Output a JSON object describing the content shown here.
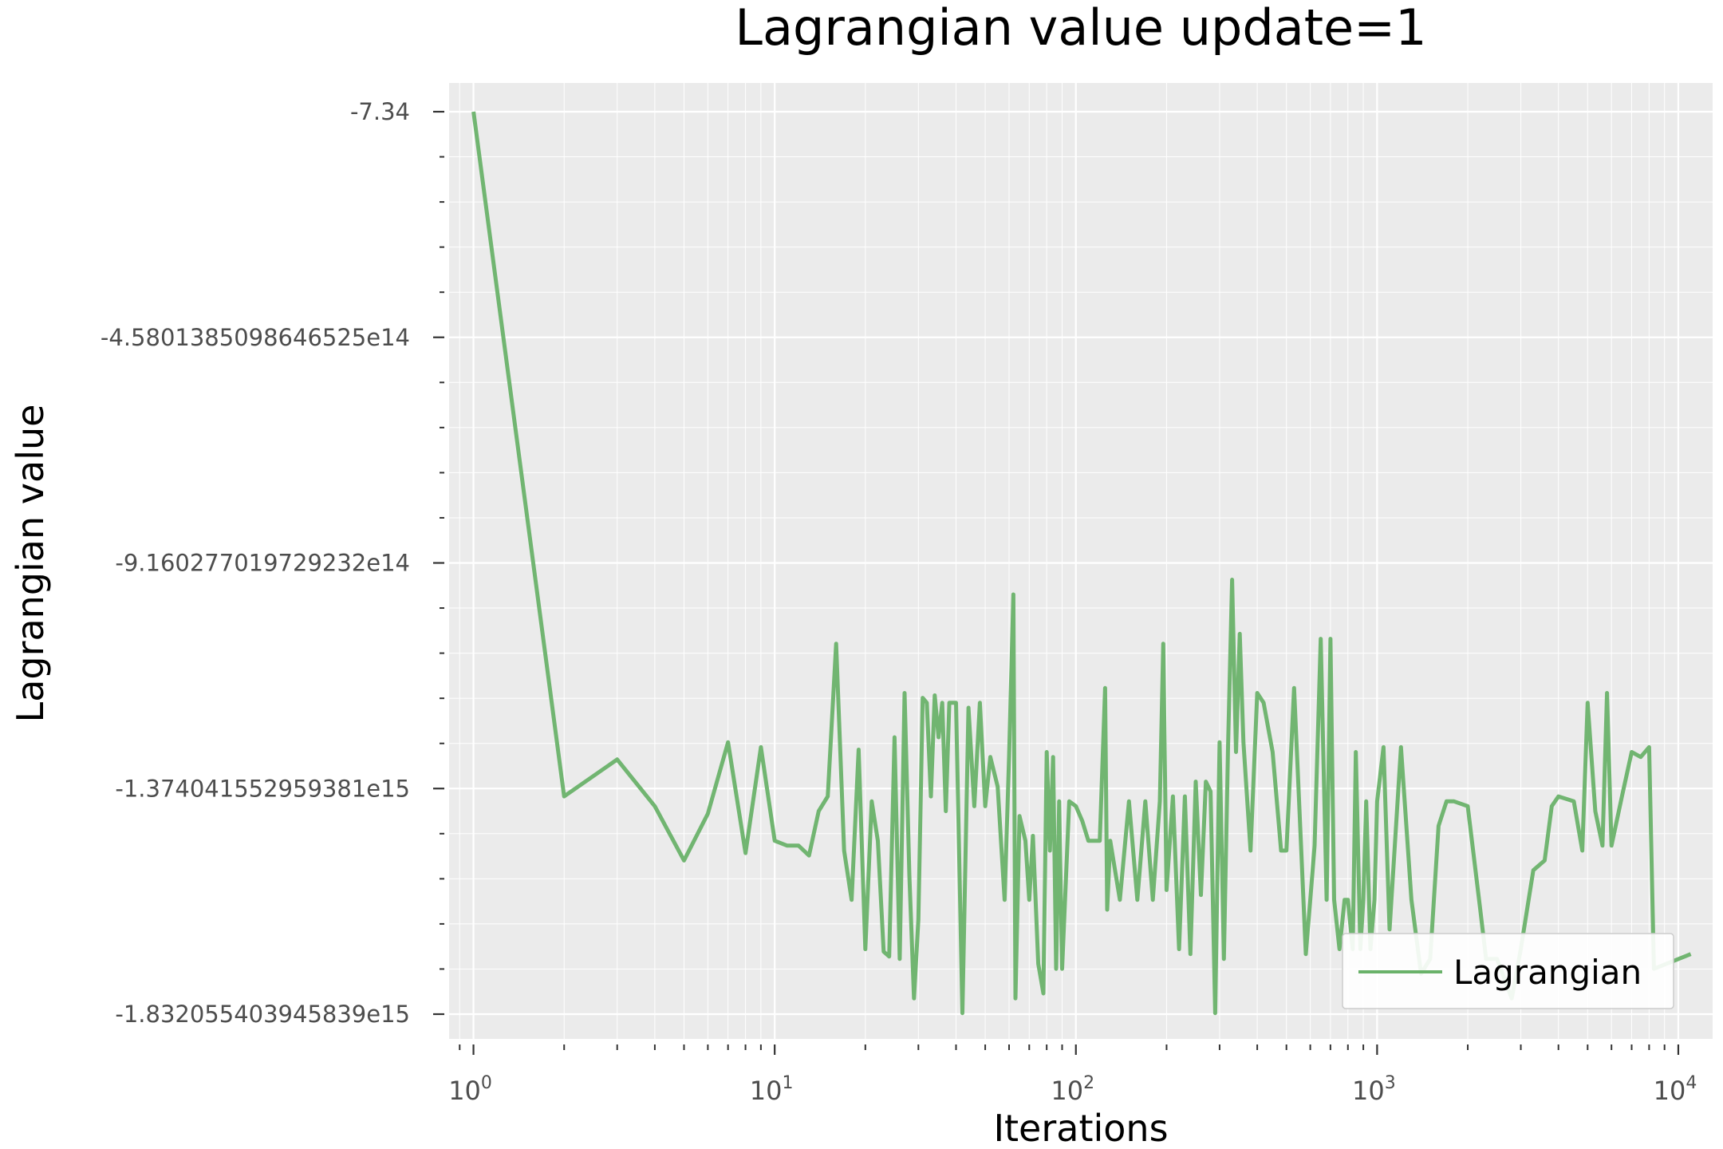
{
  "chart_data": {
    "type": "line",
    "title": "Lagrangian value update=1",
    "xlabel": "Iterations",
    "ylabel": "Lagrangian value",
    "xscale": "log",
    "xlim": [
      0.83,
      13000
    ],
    "ylim": [
      -1832055403945839.0,
      -7.34
    ],
    "x_ticks": [
      {
        "base": "10",
        "exp": "0",
        "value": 1
      },
      {
        "base": "10",
        "exp": "1",
        "value": 10
      },
      {
        "base": "10",
        "exp": "2",
        "value": 100
      },
      {
        "base": "10",
        "exp": "3",
        "value": 1000
      },
      {
        "base": "10",
        "exp": "4",
        "value": 10000
      }
    ],
    "y_ticks": [
      {
        "label": "-7.34",
        "value": -7.34
      },
      {
        "label": "-4.5801385098646525e14",
        "value": -458013850986465.25
      },
      {
        "label": "-9.160277019729232e14",
        "value": -916027701972923.2
      },
      {
        "label": "-1.374041552959381e15",
        "value": -1374041552959381.0
      },
      {
        "label": "-1.832055403945839e15",
        "value": -1832055403945839.0
      }
    ],
    "grid": true,
    "legend_position": "bottom-right",
    "series": [
      {
        "name": "Lagrangian",
        "color": "#6ab26a",
        "x": [
          1,
          2,
          3,
          4,
          5,
          6,
          7,
          8,
          9,
          10,
          11,
          12,
          13,
          14,
          15,
          16,
          17,
          18,
          19,
          20,
          21,
          22,
          23,
          24,
          25,
          26,
          27,
          28,
          29,
          30,
          31,
          32,
          33,
          34,
          35,
          36,
          37,
          38,
          40,
          42,
          44,
          46,
          48,
          50,
          52,
          55,
          58,
          60,
          62,
          63,
          65,
          68,
          70,
          72,
          75,
          78,
          80,
          82,
          84,
          86,
          88,
          90,
          95,
          100,
          105,
          110,
          115,
          120,
          125,
          127,
          130,
          140,
          150,
          160,
          170,
          180,
          190,
          195,
          200,
          210,
          220,
          230,
          240,
          250,
          260,
          270,
          280,
          290,
          300,
          310,
          320,
          330,
          340,
          350,
          360,
          380,
          400,
          420,
          450,
          480,
          500,
          530,
          560,
          580,
          600,
          620,
          650,
          680,
          700,
          720,
          750,
          780,
          800,
          830,
          850,
          880,
          900,
          920,
          950,
          980,
          1000,
          1050,
          1100,
          1200,
          1300,
          1400,
          1500,
          1600,
          1700,
          1800,
          2000,
          2200,
          2300,
          2500,
          2800,
          3000,
          3300,
          3600,
          3800,
          4000,
          4500,
          4800,
          5000,
          5300,
          5600,
          5800,
          6000,
          6500,
          7000,
          7500,
          8000,
          8300,
          11000
        ],
        "y": [
          -7.34,
          -1390000000000000.0,
          -1315000000000000.0,
          -1410000000000000.0,
          -1520000000000000.0,
          -1425000000000000.0,
          -1280000000000000.0,
          -1505000000000000.0,
          -1290000000000000.0,
          -1480000000000000.0,
          -1490000000000000.0,
          -1490000000000000.0,
          -1510000000000000.0,
          -1420000000000000.0,
          -1390000000000000.0,
          -1080000000000000.0,
          -1500000000000000.0,
          -1600000000000000.0,
          -1295000000000000.0,
          -1700000000000000.0,
          -1400000000000000.0,
          -1480000000000000.0,
          -1705000000000000.0,
          -1715000000000000.0,
          -1270000000000000.0,
          -1720000000000000.0,
          -1180000000000000.0,
          -1550000000000000.0,
          -1800000000000000.0,
          -1640000000000000.0,
          -1190000000000000.0,
          -1200000000000000.0,
          -1390000000000000.0,
          -1185000000000000.0,
          -1270000000000000.0,
          -1200000000000000.0,
          -1420000000000000.0,
          -1200000000000000.0,
          -1200000000000000.0,
          -1830000000000000.0,
          -1210000000000000.0,
          -1410000000000000.0,
          -1200000000000000.0,
          -1410000000000000.0,
          -1310000000000000.0,
          -1370000000000000.0,
          -1600000000000000.0,
          -1310000000000000.0,
          -980000000000000.0,
          -1800000000000000.0,
          -1430000000000000.0,
          -1480000000000000.0,
          -1600000000000000.0,
          -1470000000000000.0,
          -1730000000000000.0,
          -1790000000000000.0,
          -1300000000000000.0,
          -1500000000000000.0,
          -1310000000000000.0,
          -1740000000000000.0,
          -1400000000000000.0,
          -1740000000000000.0,
          -1400000000000000.0,
          -1410000000000000.0,
          -1440000000000000.0,
          -1480000000000000.0,
          -1480000000000000.0,
          -1480000000000000.0,
          -1170000000000000.0,
          -1620000000000000.0,
          -1480000000000000.0,
          -1600000000000000.0,
          -1400000000000000.0,
          -1600000000000000.0,
          -1400000000000000.0,
          -1600000000000000.0,
          -1400000000000000.0,
          -1080000000000000.0,
          -1580000000000000.0,
          -1390000000000000.0,
          -1700000000000000.0,
          -1390000000000000.0,
          -1710000000000000.0,
          -1360000000000000.0,
          -1590000000000000.0,
          -1360000000000000.0,
          -1380000000000000.0,
          -1830000000000000.0,
          -1280000000000000.0,
          -1720000000000000.0,
          -1290000000000000.0,
          -950000000000000.0,
          -1300000000000000.0,
          -1060000000000000.0,
          -1280000000000000.0,
          -1500000000000000.0,
          -1180000000000000.0,
          -1200000000000000.0,
          -1300000000000000.0,
          -1500000000000000.0,
          -1500000000000000.0,
          -1170000000000000.0,
          -1500000000000000.0,
          -1710000000000000.0,
          -1600000000000000.0,
          -1490000000000000.0,
          -1070000000000000.0,
          -1600000000000000.0,
          -1070000000000000.0,
          -1600000000000000.0,
          -1700000000000000.0,
          -1600000000000000.0,
          -1600000000000000.0,
          -1700000000000000.0,
          -1300000000000000.0,
          -1700000000000000.0,
          -1600000000000000.0,
          -1400000000000000.0,
          -1700000000000000.0,
          -1600000000000000.0,
          -1400000000000000.0,
          -1290000000000000.0,
          -1660000000000000.0,
          -1290000000000000.0,
          -1600000000000000.0,
          -1750000000000000.0,
          -1720000000000000.0,
          -1450000000000000.0,
          -1400000000000000.0,
          -1400000000000000.0,
          -1410000000000000.0,
          -1620000000000000.0,
          -1720000000000000.0,
          -1720000000000000.0,
          -1800000000000000.0,
          -1700000000000000.0,
          -1540000000000000.0,
          -1520000000000000.0,
          -1410000000000000.0,
          -1390000000000000.0,
          -1400000000000000.0,
          -1500000000000000.0,
          -1200000000000000.0,
          -1420000000000000.0,
          -1490000000000000.0,
          -1180000000000000.0,
          -1490000000000000.0,
          -1390000000000000.0,
          -1300000000000000.0,
          -1310000000000000.0,
          -1290000000000000.0,
          -1740000000000000.0,
          -1710000000000000.0
        ]
      }
    ]
  }
}
